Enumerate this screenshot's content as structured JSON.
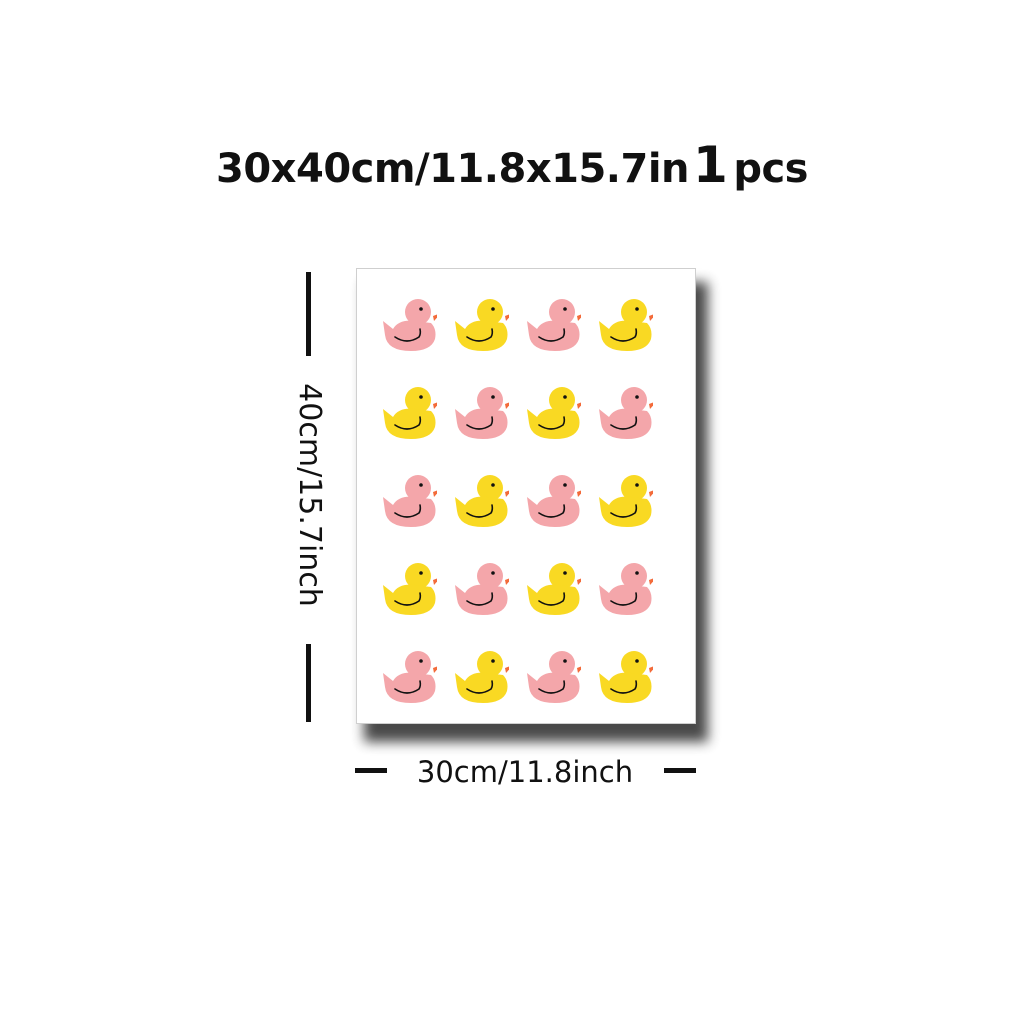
{
  "title": {
    "size_text": "30x40cm/11.8x15.7in",
    "quantity": "1",
    "unit": "pcs"
  },
  "dimensions": {
    "height_label": "40cm/15.7inch",
    "width_label": "30cm/11.8inch"
  },
  "colors": {
    "pink_duck": "#f4a6aa",
    "yellow_duck": "#f9d923",
    "beak": "#f36b3a",
    "eye": "#111111"
  },
  "duck_rows": [
    [
      "pink",
      "yellow",
      "pink",
      "yellow"
    ],
    [
      "yellow",
      "pink",
      "yellow",
      "pink"
    ],
    [
      "pink",
      "yellow",
      "pink",
      "yellow"
    ],
    [
      "yellow",
      "pink",
      "yellow",
      "pink"
    ],
    [
      "pink",
      "yellow",
      "pink",
      "yellow"
    ]
  ]
}
